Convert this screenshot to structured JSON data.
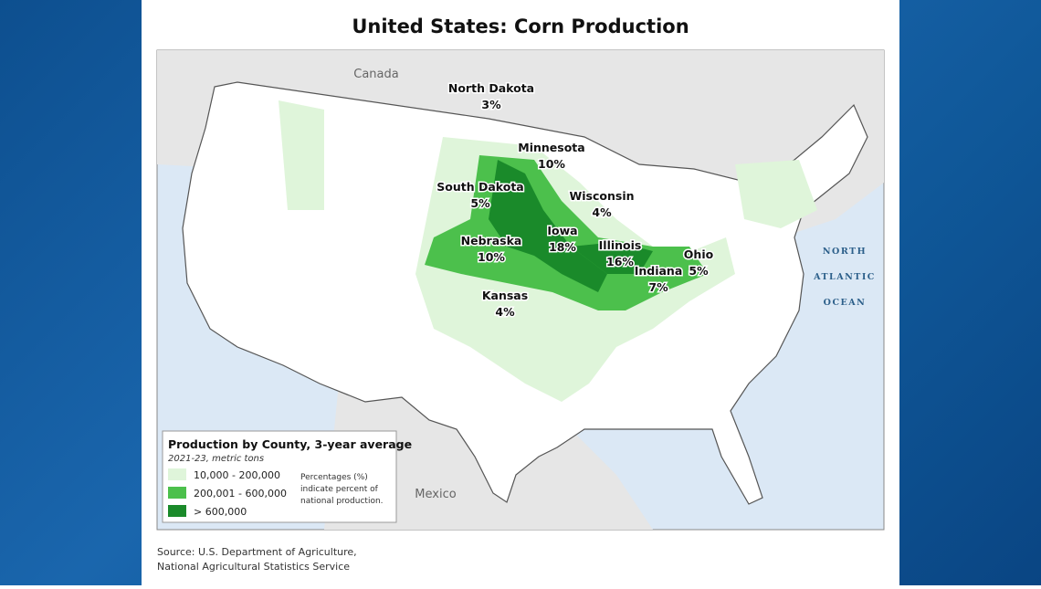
{
  "header": {
    "title": "United States: Corn Production"
  },
  "places": {
    "canada": "Canada",
    "mexico": "Mexico",
    "ocean": [
      "NORTH",
      "ATLANTIC",
      "OCEAN"
    ]
  },
  "states": [
    {
      "name": "North Dakota",
      "share": "3%"
    },
    {
      "name": "Minnesota",
      "share": "10%"
    },
    {
      "name": "South Dakota",
      "share": "5%"
    },
    {
      "name": "Wisconsin",
      "share": "4%"
    },
    {
      "name": "Iowa",
      "share": "18%"
    },
    {
      "name": "Nebraska",
      "share": "10%"
    },
    {
      "name": "Illinois",
      "share": "16%"
    },
    {
      "name": "Ohio",
      "share": "5%"
    },
    {
      "name": "Indiana",
      "share": "7%"
    },
    {
      "name": "Kansas",
      "share": "4%"
    }
  ],
  "legend": {
    "title": "Production by County, 3-year average",
    "subtitle": "2021-23, metric tons",
    "items": [
      {
        "label": "10,000 - 200,000",
        "color": "#dff5da"
      },
      {
        "label": "200,001 - 600,000",
        "color": "#4cc04c"
      },
      {
        "label": "> 600,000",
        "color": "#1a8a2a"
      }
    ],
    "note": [
      "Percentages (%)",
      "indicate percent of",
      "national production."
    ]
  },
  "source": [
    "Source: U.S. Department of Agriculture,",
    "National Agricultural Statistics Service"
  ]
}
